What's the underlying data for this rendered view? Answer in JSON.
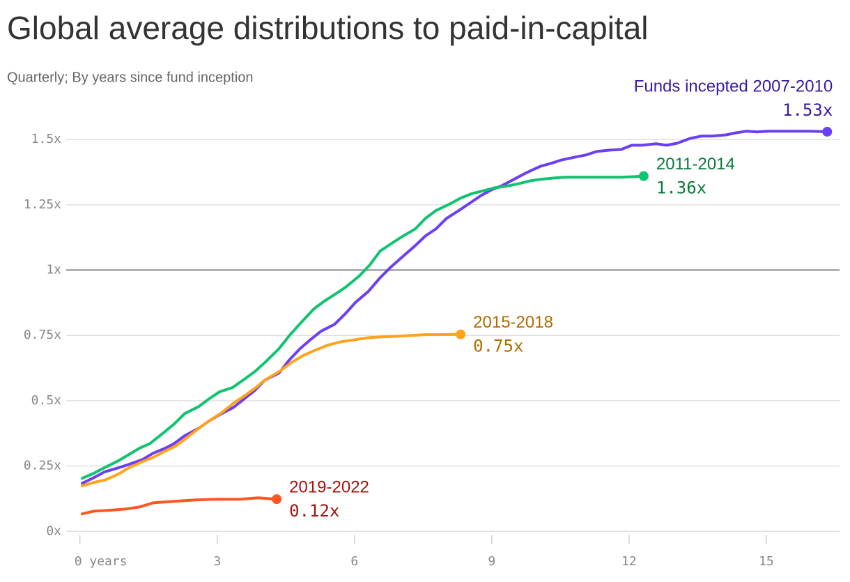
{
  "chart_data": {
    "type": "line",
    "title": "Global average distributions to paid-in-capital",
    "subtitle": "Quarterly; By years since fund inception",
    "xlim": [
      -0.3,
      16.6
    ],
    "ylim": [
      -0.05,
      1.65
    ],
    "xticks": [
      {
        "value": 0,
        "label": "0 years"
      },
      3,
      6,
      9,
      12,
      15
    ],
    "yticks": [
      {
        "value": 0,
        "label": "0x"
      },
      {
        "value": 0.25,
        "label": "0.25x"
      },
      {
        "value": 0.5,
        "label": "0.5x"
      },
      {
        "value": 0.75,
        "label": "0.75x"
      },
      {
        "value": 1,
        "label": "1x"
      },
      {
        "value": 1.25,
        "label": "1.25x"
      },
      {
        "value": 1.5,
        "label": "1.5x"
      }
    ],
    "reference_line": 1,
    "grid": true,
    "series": [
      {
        "name": "Funds incepted 2007-2010",
        "color": "#6b3ff2",
        "label_color": "#3a1aa0",
        "x": [
          0.05,
          0.3,
          0.53,
          0.84,
          1.07,
          1.37,
          1.6,
          1.86,
          2.06,
          2.29,
          2.6,
          2.82,
          3.05,
          3.36,
          3.59,
          3.82,
          4.04,
          4.35,
          4.58,
          4.81,
          5.04,
          5.27,
          5.57,
          5.8,
          6.03,
          6.3,
          6.56,
          6.79,
          7.1,
          7.33,
          7.55,
          7.78,
          8.01,
          8.32,
          8.55,
          8.77,
          9.0,
          9.23,
          9.54,
          9.77,
          10.07,
          10.3,
          10.53,
          10.83,
          11.06,
          11.29,
          11.6,
          11.83,
          12.06,
          12.28,
          12.59,
          12.82,
          13.05,
          13.35,
          13.58,
          13.81,
          14.12,
          14.34,
          14.57,
          14.8,
          15.03,
          15.34,
          15.64,
          15.95,
          16.33
        ],
        "values": [
          0.184,
          0.205,
          0.227,
          0.243,
          0.256,
          0.275,
          0.299,
          0.318,
          0.336,
          0.366,
          0.395,
          0.422,
          0.446,
          0.475,
          0.507,
          0.539,
          0.579,
          0.606,
          0.657,
          0.699,
          0.734,
          0.766,
          0.793,
          0.833,
          0.878,
          0.918,
          0.971,
          1.011,
          1.059,
          1.094,
          1.131,
          1.158,
          1.198,
          1.233,
          1.26,
          1.286,
          1.308,
          1.324,
          1.353,
          1.374,
          1.398,
          1.409,
          1.422,
          1.433,
          1.441,
          1.454,
          1.46,
          1.462,
          1.478,
          1.478,
          1.484,
          1.478,
          1.486,
          1.505,
          1.513,
          1.513,
          1.518,
          1.526,
          1.532,
          1.529,
          1.532,
          1.532,
          1.532,
          1.532,
          1.53
        ],
        "value_labels": [
          null,
          null,
          null,
          null,
          null,
          null,
          null,
          null,
          null,
          null,
          null,
          null,
          null,
          null,
          null,
          null,
          null,
          null,
          null,
          null,
          null,
          null,
          null,
          null,
          null,
          null,
          null,
          null,
          null,
          null,
          null,
          null,
          null,
          null,
          null,
          null,
          null,
          null,
          null,
          null,
          null,
          null,
          null,
          null,
          null,
          null,
          null,
          null,
          null,
          null,
          null,
          null,
          null,
          null,
          null,
          null,
          null,
          null,
          null,
          null,
          null,
          null,
          null,
          null,
          "1.53x"
        ],
        "label_side": "top-right"
      },
      {
        "name": "2011-2014",
        "color": "#10c46f",
        "label_color": "#0a7a3c",
        "x": [
          0.05,
          0.3,
          0.53,
          0.84,
          1.07,
          1.3,
          1.53,
          1.76,
          2.06,
          2.29,
          2.6,
          2.82,
          3.05,
          3.33,
          3.59,
          3.82,
          4.04,
          4.35,
          4.58,
          4.81,
          5.11,
          5.34,
          5.57,
          5.8,
          6.1,
          6.33,
          6.56,
          6.79,
          7.02,
          7.33,
          7.55,
          7.78,
          8.09,
          8.32,
          8.55,
          8.77,
          9.08,
          9.31,
          9.61,
          9.84,
          10.07,
          10.38,
          10.61,
          10.91,
          11.22,
          11.52,
          11.83,
          12.32
        ],
        "values": [
          0.203,
          0.222,
          0.243,
          0.27,
          0.294,
          0.318,
          0.336,
          0.368,
          0.411,
          0.451,
          0.478,
          0.507,
          0.534,
          0.55,
          0.582,
          0.611,
          0.646,
          0.699,
          0.75,
          0.795,
          0.851,
          0.881,
          0.907,
          0.934,
          0.977,
          1.019,
          1.073,
          1.1,
          1.126,
          1.158,
          1.198,
          1.228,
          1.254,
          1.276,
          1.292,
          1.302,
          1.316,
          1.321,
          1.332,
          1.342,
          1.348,
          1.353,
          1.356,
          1.356,
          1.356,
          1.356,
          1.356,
          1.36
        ],
        "value_labels": [
          null,
          null,
          null,
          null,
          null,
          null,
          null,
          null,
          null,
          null,
          null,
          null,
          null,
          null,
          null,
          null,
          null,
          null,
          null,
          null,
          null,
          null,
          null,
          null,
          null,
          null,
          null,
          null,
          null,
          null,
          null,
          null,
          null,
          null,
          null,
          null,
          null,
          null,
          null,
          null,
          null,
          null,
          null,
          null,
          null,
          null,
          null,
          "1.36x"
        ],
        "label_side": "right"
      },
      {
        "name": "2015-2018",
        "color": "#ffa31a",
        "label_color": "#b36b00",
        "x": [
          0.05,
          0.3,
          0.56,
          0.84,
          1.07,
          1.37,
          1.6,
          1.86,
          2.09,
          2.29,
          2.6,
          2.82,
          3.1,
          3.36,
          3.59,
          3.86,
          4.04,
          4.35,
          4.62,
          4.88,
          5.11,
          5.42,
          5.72,
          6.03,
          6.33,
          6.64,
          6.94,
          7.25,
          7.55,
          7.86,
          8.32
        ],
        "values": [
          0.174,
          0.187,
          0.197,
          0.219,
          0.243,
          0.267,
          0.283,
          0.307,
          0.326,
          0.352,
          0.395,
          0.422,
          0.454,
          0.491,
          0.518,
          0.552,
          0.579,
          0.611,
          0.646,
          0.673,
          0.691,
          0.713,
          0.726,
          0.734,
          0.742,
          0.745,
          0.747,
          0.75,
          0.753,
          0.753,
          0.754
        ],
        "value_labels": [
          null,
          null,
          null,
          null,
          null,
          null,
          null,
          null,
          null,
          null,
          null,
          null,
          null,
          null,
          null,
          null,
          null,
          null,
          null,
          null,
          null,
          null,
          null,
          null,
          null,
          null,
          null,
          null,
          null,
          null,
          "0.75x"
        ],
        "label_side": "right"
      },
      {
        "name": "2019-2022",
        "color": "#ff5722",
        "label_color": "#a8120a",
        "x": [
          0.05,
          0.3,
          0.61,
          0.99,
          1.3,
          1.6,
          2.06,
          2.52,
          2.98,
          3.51,
          3.89,
          4.3
        ],
        "values": [
          0.067,
          0.077,
          0.08,
          0.085,
          0.093,
          0.109,
          0.115,
          0.12,
          0.123,
          0.123,
          0.128,
          0.123
        ],
        "value_labels": [
          null,
          null,
          null,
          null,
          null,
          null,
          null,
          null,
          null,
          null,
          null,
          "0.12x"
        ],
        "label_side": "right"
      }
    ]
  }
}
